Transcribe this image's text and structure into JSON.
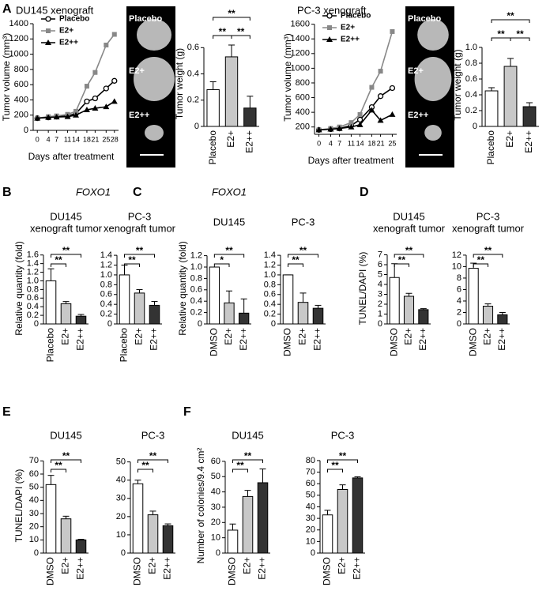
{
  "panel_letters": [
    "A",
    "B",
    "C",
    "D",
    "E",
    "F"
  ],
  "gene_labels": [
    "FOXO1",
    "FOXO1"
  ],
  "images": [
    {
      "labels": [
        "Placebo",
        "E2+",
        "E2++"
      ]
    },
    {
      "labels": [
        "Placebo",
        "E2+",
        "E2++"
      ]
    }
  ],
  "chart_data": [
    {
      "type": "line",
      "title": [
        "DU145 xenograft"
      ],
      "ylabel": "Tumor volume (mm³)",
      "xlabel": "Days after treatment",
      "x": [
        0,
        4,
        7,
        11,
        14,
        18,
        21,
        25,
        28
      ],
      "xlim": [
        -1.5,
        29.5
      ],
      "xticks": [
        0,
        4,
        7,
        11,
        14,
        18,
        21,
        25,
        28
      ],
      "ylim": [
        0,
        1400
      ],
      "yticks": [
        0,
        200,
        400,
        600,
        800,
        1000,
        1200,
        1400
      ],
      "legend": "upper left",
      "series": [
        {
          "name": "Placebo",
          "color": "#000000",
          "marker": "circle",
          "values": [
            160,
            170,
            180,
            190,
            220,
            380,
            420,
            550,
            650
          ]
        },
        {
          "name": "E2+",
          "color": "#888888",
          "marker": "square",
          "values": [
            160,
            180,
            190,
            210,
            250,
            580,
            760,
            1120,
            1260
          ]
        },
        {
          "name": "E2++",
          "color": "#000000",
          "marker": "triangle",
          "values": [
            160,
            170,
            175,
            180,
            200,
            270,
            290,
            310,
            380
          ]
        }
      ]
    },
    {
      "type": "bar",
      "ylabel": "Tumor weight (g)",
      "categories": [
        "Placebo",
        "E2+",
        "E2++"
      ],
      "values": [
        0.28,
        0.53,
        0.14
      ],
      "errors": [
        0.06,
        0.09,
        0.09
      ],
      "colors": [
        "#ffffff",
        "#c8c8c8",
        "#333333"
      ],
      "ylim": [
        0,
        0.65
      ],
      "yticks": [
        0,
        0.2,
        0.4,
        0.6
      ],
      "annotations": [
        "**",
        "**",
        "**"
      ]
    },
    {
      "type": "line",
      "title": [
        "PC-3 xenograft"
      ],
      "ylabel": "Tumor volume (mm³)",
      "xlabel": "Days after treatment",
      "x": [
        0,
        4,
        7,
        11,
        14,
        18,
        21,
        25
      ],
      "xlim": [
        -1.5,
        26.5
      ],
      "xticks": [
        0,
        4,
        7,
        11,
        14,
        18,
        21,
        25
      ],
      "ylim": [
        100,
        1650
      ],
      "yticks": [
        200,
        400,
        600,
        800,
        1000,
        1200,
        1400,
        1600
      ],
      "legend": "upper left",
      "series": [
        {
          "name": "Placebo",
          "color": "#000000",
          "marker": "circle",
          "values": [
            160,
            170,
            180,
            220,
            300,
            470,
            620,
            730
          ]
        },
        {
          "name": "E2+",
          "color": "#888888",
          "marker": "square",
          "values": [
            160,
            180,
            200,
            260,
            370,
            740,
            960,
            1500
          ]
        },
        {
          "name": "E2++",
          "color": "#000000",
          "marker": "triangle",
          "values": [
            160,
            170,
            180,
            200,
            230,
            430,
            290,
            370
          ]
        }
      ]
    },
    {
      "type": "bar",
      "ylabel": "Tumor weight (g)",
      "categories": [
        "Placebo",
        "E2+",
        "E2++"
      ],
      "values": [
        0.45,
        0.76,
        0.25
      ],
      "errors": [
        0.04,
        0.1,
        0.05
      ],
      "colors": [
        "#ffffff",
        "#c8c8c8",
        "#333333"
      ],
      "ylim": [
        0,
        1.05
      ],
      "yticks": [
        0,
        0.2,
        0.4,
        0.6,
        0.8,
        {
          "value": 1,
          "label": "1.0"
        }
      ],
      "annotations": [
        "**",
        "**",
        "**"
      ]
    },
    {
      "type": "bar",
      "title": [
        "DU145",
        "xenograft tumor"
      ],
      "ylabel": "Relative quantity (fold)",
      "categories": [
        "Placebo",
        "E2+",
        "E2++"
      ],
      "values": [
        1.0,
        0.47,
        0.18
      ],
      "errors": [
        0.28,
        0.05,
        0.04
      ],
      "colors": [
        "#ffffff",
        "#c8c8c8",
        "#333333"
      ],
      "ylim": [
        0,
        1.65
      ],
      "yticks": [
        0,
        0.2,
        0.4,
        0.6,
        0.8,
        {
          "value": 1,
          "label": "1.0"
        },
        1.2,
        1.4,
        1.6
      ],
      "annotations": [
        "**",
        "**"
      ]
    },
    {
      "type": "bar",
      "title": [
        "PC-3",
        "xenograft tumor"
      ],
      "categories": [
        "Placebo",
        "E2+",
        "E2++"
      ],
      "values": [
        1.0,
        0.63,
        0.38
      ],
      "errors": [
        0.2,
        0.07,
        0.08
      ],
      "colors": [
        "#ffffff",
        "#c8c8c8",
        "#333333"
      ],
      "ylim": [
        0,
        1.45
      ],
      "yticks": [
        0,
        0.2,
        0.4,
        0.6,
        0.8,
        {
          "value": 1,
          "label": "1.0"
        },
        1.2,
        1.4
      ],
      "annotations": [
        "**",
        "**"
      ]
    },
    {
      "type": "bar",
      "title": [
        "DU145"
      ],
      "ylabel": "Relative quantity (fold)",
      "categories": [
        "DMSO",
        "E2+",
        "E2++"
      ],
      "values": [
        1.0,
        0.37,
        0.19
      ],
      "errors": [
        0,
        0.21,
        0.25
      ],
      "colors": [
        "#ffffff",
        "#c8c8c8",
        "#333333"
      ],
      "ylim": [
        0,
        1.25
      ],
      "yticks": [
        0,
        0.2,
        0.4,
        0.6,
        0.8,
        {
          "value": 1,
          "label": "1.0"
        },
        1.2
      ],
      "annotations": [
        "*",
        "**"
      ]
    },
    {
      "type": "bar",
      "title": [
        "PC-3"
      ],
      "categories": [
        "DMSO",
        "E2+",
        "E2++"
      ],
      "values": [
        1.0,
        0.44,
        0.32
      ],
      "errors": [
        0,
        0.19,
        0.06
      ],
      "colors": [
        "#ffffff",
        "#c8c8c8",
        "#333333"
      ],
      "ylim": [
        0,
        1.45
      ],
      "yticks": [
        0,
        0.2,
        0.4,
        0.6,
        0.8,
        {
          "value": 1,
          "label": "1.0"
        },
        1.2,
        1.4
      ],
      "annotations": [
        "**",
        "**"
      ]
    },
    {
      "type": "bar",
      "title": [
        "DU145",
        "xenograft tumor"
      ],
      "ylabel": "TUNEL/DAPI (%)",
      "categories": [
        "DMSO",
        "E2+",
        "E2++"
      ],
      "values": [
        4.7,
        2.8,
        1.45
      ],
      "errors": [
        1.4,
        0.3,
        0.1
      ],
      "colors": [
        "#ffffff",
        "#c8c8c8",
        "#333333"
      ],
      "ylim": [
        0,
        7.2
      ],
      "yticks": [
        0,
        1,
        2,
        3,
        4,
        5,
        6,
        7
      ],
      "annotations": [
        "**",
        "**"
      ]
    },
    {
      "type": "bar",
      "title": [
        "PC-3",
        "xenograft tumor"
      ],
      "categories": [
        "DMSO",
        "E2+",
        "E2++"
      ],
      "values": [
        9.7,
        3.1,
        1.6
      ],
      "errors": [
        0.9,
        0.4,
        0.4
      ],
      "colors": [
        "#ffffff",
        "#c8c8c8",
        "#333333"
      ],
      "ylim": [
        0,
        12.4
      ],
      "yticks": [
        0,
        2,
        4,
        6,
        8,
        10,
        12
      ],
      "annotations": [
        "**",
        "**"
      ]
    },
    {
      "type": "bar",
      "title": [
        "DU145"
      ],
      "ylabel": "TUNEL/DAPI (%)",
      "categories": [
        "DMSO",
        "E2+",
        "E2++"
      ],
      "values": [
        52,
        26,
        10
      ],
      "errors": [
        7,
        2,
        0.5
      ],
      "colors": [
        "#ffffff",
        "#c8c8c8",
        "#333333"
      ],
      "ylim": [
        0,
        72
      ],
      "yticks": [
        0,
        10,
        20,
        30,
        40,
        50,
        60,
        70
      ],
      "annotations": [
        "**",
        "**"
      ]
    },
    {
      "type": "bar",
      "title": [
        "PC-3"
      ],
      "categories": [
        "DMSO",
        "E2+",
        "E2++"
      ],
      "values": [
        38,
        21,
        15
      ],
      "errors": [
        2,
        2,
        1
      ],
      "colors": [
        "#ffffff",
        "#c8c8c8",
        "#333333"
      ],
      "ylim": [
        0,
        52
      ],
      "yticks": [
        0,
        10,
        20,
        30,
        40,
        50
      ],
      "annotations": [
        "**",
        "**"
      ]
    },
    {
      "type": "bar",
      "title": [
        "DU145"
      ],
      "ylabel": "Number of colonies/9.4 cm²",
      "categories": [
        "DMSO",
        "E2+",
        "E2++"
      ],
      "values": [
        15,
        37,
        46
      ],
      "errors": [
        4,
        4,
        9
      ],
      "colors": [
        "#ffffff",
        "#c8c8c8",
        "#333333"
      ],
      "ylim": [
        0,
        62
      ],
      "yticks": [
        0,
        10,
        20,
        30,
        40,
        50,
        60
      ],
      "annotations": [
        "**",
        "**"
      ]
    },
    {
      "type": "bar",
      "title": [
        "PC-3"
      ],
      "categories": [
        "DMSO",
        "E2+",
        "E2++"
      ],
      "values": [
        33,
        55,
        65
      ],
      "errors": [
        4,
        4,
        1
      ],
      "colors": [
        "#ffffff",
        "#c8c8c8",
        "#333333"
      ],
      "ylim": [
        0,
        82
      ],
      "yticks": [
        0,
        10,
        20,
        30,
        40,
        50,
        60,
        70,
        80
      ],
      "annotations": [
        "**",
        "**"
      ]
    }
  ]
}
